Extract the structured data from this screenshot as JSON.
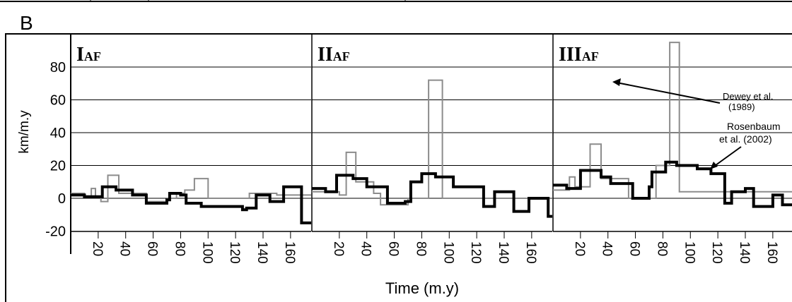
{
  "figure": {
    "panel_letter": "B",
    "ylabel": "km/m.y",
    "xlabel": "Time (m.y)",
    "annotation_dewey": [
      "Dewey et al.",
      "(1989)"
    ],
    "annotation_rosenbaum": [
      "Rosenbaum",
      "et al. (2002)"
    ]
  },
  "colors": {
    "dewey_series": "#8c8c8c",
    "rosenbaum_series": "#000000",
    "axes": "#000000",
    "background": "#ffffff"
  },
  "chart_data": [
    {
      "type": "line",
      "panel_label": "IAF",
      "panel_roman": "I",
      "panel_sub": "AF",
      "ylim": [
        -20,
        100
      ],
      "yticks": [
        80,
        60,
        40,
        20,
        0,
        -20
      ],
      "xlim": [
        0,
        175
      ],
      "xticks": [
        20,
        40,
        60,
        80,
        100,
        120,
        140,
        160
      ],
      "grid": true,
      "series": [
        {
          "name": "Dewey et al. (1989)",
          "style": "thin-grey",
          "steps": [
            [
              0,
              3
            ],
            [
              10,
              1
            ],
            [
              15,
              6
            ],
            [
              18,
              1
            ],
            [
              22,
              -2
            ],
            [
              27,
              14
            ],
            [
              35,
              3
            ],
            [
              50,
              3
            ],
            [
              55,
              -2
            ],
            [
              70,
              0
            ],
            [
              77,
              3
            ],
            [
              83,
              5
            ],
            [
              90,
              12
            ],
            [
              100,
              0
            ],
            [
              120,
              0
            ],
            [
              130,
              3
            ],
            [
              150,
              2
            ],
            [
              175,
              2
            ]
          ]
        },
        {
          "name": "Rosenbaum et al. (2002)",
          "style": "thick-black",
          "steps": [
            [
              0,
              2
            ],
            [
              10,
              1
            ],
            [
              20,
              1
            ],
            [
              23,
              7
            ],
            [
              33,
              5
            ],
            [
              45,
              2
            ],
            [
              55,
              -3
            ],
            [
              70,
              -1
            ],
            [
              72,
              3
            ],
            [
              80,
              2
            ],
            [
              84,
              -3
            ],
            [
              95,
              -5
            ],
            [
              105,
              -5
            ],
            [
              115,
              -5
            ],
            [
              125,
              -7
            ],
            [
              128,
              -6
            ],
            [
              135,
              2
            ],
            [
              145,
              -2
            ],
            [
              155,
              7
            ],
            [
              167,
              7
            ],
            [
              168,
              -15
            ],
            [
              175,
              -15
            ]
          ]
        }
      ]
    },
    {
      "type": "line",
      "panel_label": "IIAF",
      "panel_roman": "II",
      "panel_sub": "AF",
      "ylim": [
        -20,
        100
      ],
      "xlim": [
        0,
        175
      ],
      "xticks": [
        20,
        40,
        60,
        80,
        100,
        120,
        140,
        160
      ],
      "grid": true,
      "series": [
        {
          "name": "Dewey et al. (1989)",
          "style": "thin-grey",
          "steps": [
            [
              0,
              4
            ],
            [
              10,
              4
            ],
            [
              20,
              2
            ],
            [
              25,
              28
            ],
            [
              32,
              10
            ],
            [
              45,
              3
            ],
            [
              50,
              -4
            ],
            [
              70,
              0
            ],
            [
              85,
              72
            ],
            [
              95,
              0
            ],
            [
              175,
              0
            ]
          ]
        },
        {
          "name": "Rosenbaum et al. (2002)",
          "style": "thick-black",
          "steps": [
            [
              0,
              6
            ],
            [
              10,
              4
            ],
            [
              18,
              14
            ],
            [
              30,
              12
            ],
            [
              40,
              7
            ],
            [
              55,
              -3
            ],
            [
              68,
              -2
            ],
            [
              72,
              10
            ],
            [
              80,
              15
            ],
            [
              90,
              13
            ],
            [
              103,
              7
            ],
            [
              125,
              -5
            ],
            [
              133,
              4
            ],
            [
              147,
              -8
            ],
            [
              158,
              0
            ],
            [
              172,
              -11
            ],
            [
              175,
              -11
            ]
          ]
        }
      ]
    },
    {
      "type": "line",
      "panel_label": "IIIAF",
      "panel_roman": "III",
      "panel_sub": "AF",
      "ylim": [
        -20,
        100
      ],
      "xlim": [
        0,
        175
      ],
      "xticks": [
        20,
        40,
        60,
        80,
        100,
        120,
        140,
        160
      ],
      "grid": true,
      "series": [
        {
          "name": "Dewey et al. (1989)",
          "style": "thin-grey",
          "steps": [
            [
              0,
              5
            ],
            [
              12,
              13
            ],
            [
              16,
              7
            ],
            [
              27,
              33
            ],
            [
              35,
              12
            ],
            [
              55,
              0
            ],
            [
              75,
              20
            ],
            [
              85,
              95
            ],
            [
              92,
              4
            ],
            [
              175,
              4
            ]
          ]
        },
        {
          "name": "Rosenbaum et al. (2002)",
          "style": "thick-black",
          "steps": [
            [
              0,
              8
            ],
            [
              10,
              6
            ],
            [
              20,
              17
            ],
            [
              35,
              13
            ],
            [
              42,
              9
            ],
            [
              58,
              0
            ],
            [
              70,
              7
            ],
            [
              72,
              16
            ],
            [
              82,
              22
            ],
            [
              90,
              20
            ],
            [
              105,
              18
            ],
            [
              115,
              15
            ],
            [
              125,
              -3
            ],
            [
              130,
              4
            ],
            [
              140,
              6
            ],
            [
              146,
              -5
            ],
            [
              160,
              2
            ],
            [
              167,
              -4
            ],
            [
              175,
              -4
            ]
          ]
        }
      ]
    }
  ]
}
